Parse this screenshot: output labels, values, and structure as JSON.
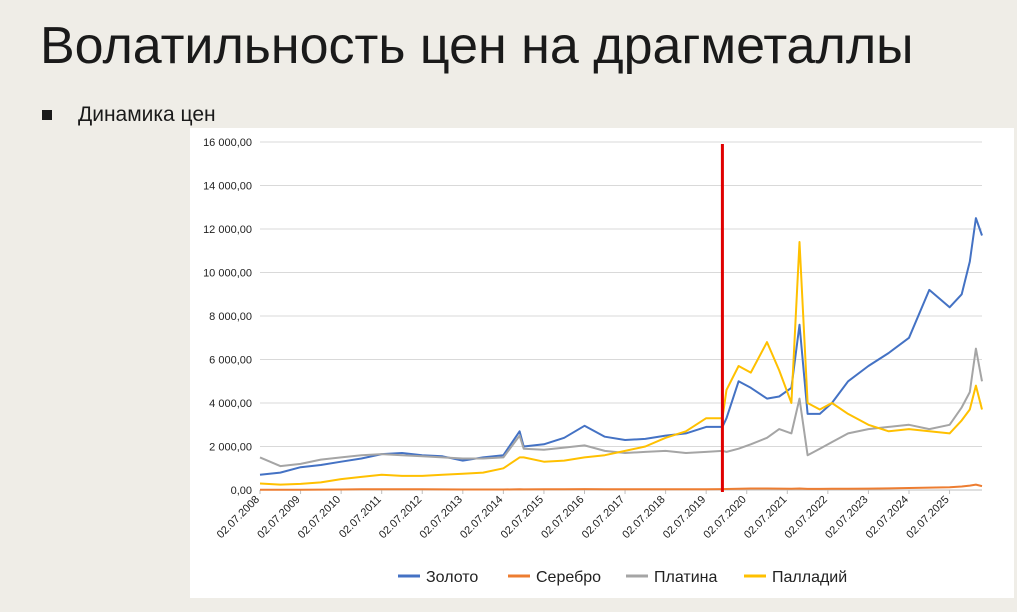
{
  "slide": {
    "title": "Волатильность цен на драгметаллы",
    "bullet": "Динамика цен"
  },
  "chart_data": {
    "type": "line",
    "title": "",
    "xlabel": "",
    "ylabel": "",
    "ylim": [
      0,
      16000
    ],
    "yticks": [
      "0,00",
      "2 000,00",
      "4 000,00",
      "6 000,00",
      "8 000,00",
      "10 000,00",
      "12 000,00",
      "14 000,00",
      "16 000,00"
    ],
    "ytick_values": [
      0,
      2000,
      4000,
      6000,
      8000,
      10000,
      12000,
      14000,
      16000
    ],
    "xticks": [
      "02.07.2008",
      "02.07.2009",
      "02.07.2010",
      "02.07.2011",
      "02.07.2012",
      "02.07.2013",
      "02.07.2014",
      "02.07.2015",
      "02.07.2016",
      "02.07.2017",
      "02.07.2018",
      "02.07.2019",
      "02.07.2020",
      "02.07.2021",
      "02.07.2022",
      "02.07.2023",
      "02.07.2024",
      "02.07.2025"
    ],
    "x_years": [
      2008.5,
      2009,
      2009.5,
      2010,
      2010.5,
      2011,
      2011.5,
      2012,
      2012.5,
      2013,
      2013.5,
      2014,
      2014.5,
      2014.9,
      2015,
      2015.5,
      2016,
      2016.5,
      2017,
      2017.5,
      2018,
      2018.5,
      2019,
      2019.5,
      2019.9,
      2020,
      2020.3,
      2020.6,
      2021,
      2021.3,
      2021.6,
      2021.8,
      2022,
      2022.3,
      2022.6,
      2023,
      2023.5,
      2024,
      2024.5,
      2025,
      2025.5,
      2025.8,
      2026,
      2026.15,
      2026.3
    ],
    "series": [
      {
        "name": "Золото",
        "color": "#4472c4",
        "values": [
          700,
          800,
          1050,
          1150,
          1300,
          1450,
          1650,
          1700,
          1600,
          1550,
          1350,
          1500,
          1600,
          2700,
          2000,
          2100,
          2400,
          2950,
          2450,
          2300,
          2350,
          2500,
          2600,
          2900,
          2900,
          3300,
          5000,
          4700,
          4200,
          4300,
          4700,
          7600,
          3500,
          3500,
          4000,
          5000,
          5700,
          6300,
          7000,
          9200,
          8400,
          9000,
          10500,
          12500,
          11700
        ]
      },
      {
        "name": "Серебро",
        "color": "#ed7d31",
        "values": [
          10,
          12,
          15,
          20,
          25,
          30,
          35,
          32,
          30,
          28,
          25,
          24,
          24,
          30,
          28,
          30,
          35,
          40,
          35,
          32,
          32,
          33,
          35,
          38,
          40,
          45,
          60,
          70,
          70,
          65,
          60,
          70,
          50,
          50,
          55,
          60,
          65,
          75,
          90,
          110,
          130,
          160,
          200,
          250,
          180
        ]
      },
      {
        "name": "Платина",
        "color": "#a5a5a5",
        "values": [
          1500,
          1100,
          1200,
          1400,
          1500,
          1600,
          1650,
          1600,
          1550,
          1500,
          1450,
          1450,
          1500,
          2500,
          1900,
          1850,
          1950,
          2050,
          1800,
          1700,
          1750,
          1800,
          1700,
          1750,
          1800,
          1750,
          1900,
          2100,
          2400,
          2800,
          2600,
          4200,
          1600,
          1900,
          2200,
          2600,
          2800,
          2900,
          3000,
          2800,
          3000,
          3800,
          4500,
          6500,
          5000
        ]
      },
      {
        "name": "Палладий",
        "color": "#ffc000",
        "values": [
          300,
          250,
          280,
          350,
          500,
          600,
          700,
          650,
          650,
          700,
          750,
          800,
          1000,
          1500,
          1500,
          1300,
          1350,
          1500,
          1600,
          1800,
          2000,
          2400,
          2700,
          3300,
          3300,
          4600,
          5700,
          5400,
          6800,
          5500,
          4000,
          11400,
          4000,
          3700,
          4000,
          3500,
          3000,
          2700,
          2800,
          2700,
          2600,
          3200,
          3700,
          4800,
          3700
        ]
      }
    ],
    "annotation": {
      "type": "vertical-line",
      "x": 2019.9,
      "color": "#e00000"
    },
    "legend_position": "bottom",
    "grid": true
  }
}
